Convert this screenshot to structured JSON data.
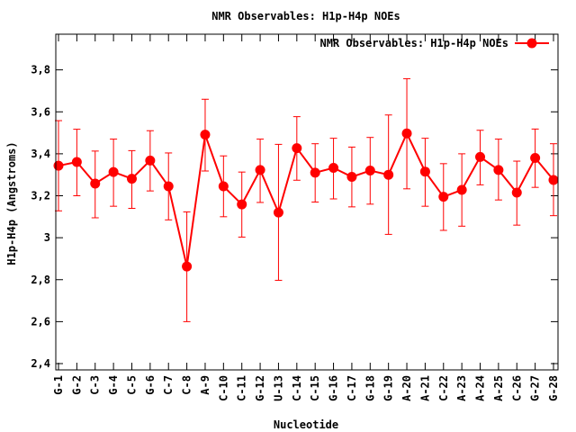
{
  "chart_data": {
    "type": "line",
    "title": "NMR Observables: H1p-H4p NOEs",
    "xlabel": "Nucleotide",
    "ylabel": "H1p-H4p (Angstroms)",
    "ylim": [
      2.37,
      3.97
    ],
    "yticks": [
      2.4,
      2.6,
      2.8,
      3,
      3.2,
      3.4,
      3.6,
      3.8
    ],
    "ytick_labels": [
      "2,4",
      "2,6",
      "2,8",
      "3",
      "3,2",
      "3,4",
      "3,6",
      "3,8"
    ],
    "legend": "top-right",
    "legend_label": "NMR Observables: H1p-H4p NOEs",
    "color": "#ff0000",
    "categories": [
      "G-1",
      "G-2",
      "C-3",
      "G-4",
      "C-5",
      "G-6",
      "C-7",
      "C-8",
      "A-9",
      "C-10",
      "C-11",
      "G-12",
      "U-13",
      "C-14",
      "C-15",
      "G-16",
      "C-17",
      "G-18",
      "G-19",
      "A-20",
      "A-21",
      "C-22",
      "A-23",
      "A-24",
      "A-25",
      "C-26",
      "G-27",
      "G-28"
    ],
    "series": [
      {
        "name": "NMR Observables: H1p-H4p NOEs",
        "values": [
          3.343,
          3.361,
          3.258,
          3.313,
          3.281,
          3.368,
          3.245,
          2.863,
          3.491,
          3.245,
          3.159,
          3.323,
          3.12,
          3.427,
          3.31,
          3.333,
          3.29,
          3.32,
          3.3,
          3.497,
          3.315,
          3.195,
          3.228,
          3.385,
          3.323,
          3.215,
          3.38,
          3.275
        ],
        "error_low": [
          3.128,
          3.2,
          3.095,
          3.15,
          3.14,
          3.223,
          3.085,
          2.6,
          3.318,
          3.1,
          3.003,
          3.168,
          2.797,
          3.274,
          3.17,
          3.185,
          3.147,
          3.16,
          3.016,
          3.233,
          3.15,
          3.035,
          3.055,
          3.252,
          3.18,
          3.06,
          3.24,
          3.105
        ],
        "error_high": [
          3.558,
          3.517,
          3.413,
          3.47,
          3.415,
          3.51,
          3.404,
          3.123,
          3.66,
          3.39,
          3.313,
          3.47,
          3.445,
          3.577,
          3.448,
          3.474,
          3.432,
          3.478,
          3.585,
          3.758,
          3.474,
          3.353,
          3.4,
          3.512,
          3.47,
          3.365,
          3.518,
          3.448
        ]
      }
    ]
  }
}
